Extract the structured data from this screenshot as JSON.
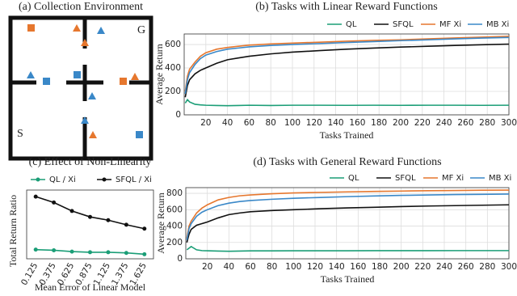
{
  "environment": {
    "title": "(a) Collection Environment",
    "goal_label": "G",
    "start_label": "S"
  },
  "chart_data": [
    {
      "type": "line",
      "title": "(b) Tasks with Linear Reward Functions",
      "x_label": "Tasks Trained",
      "y_label": "Average Return",
      "x": [
        1,
        3,
        5,
        10,
        15,
        20,
        30,
        40,
        50,
        60,
        80,
        100,
        125,
        150,
        175,
        200,
        225,
        250,
        275,
        300
      ],
      "xlim": [
        0,
        300
      ],
      "xticks": [
        20,
        40,
        60,
        80,
        100,
        120,
        140,
        160,
        180,
        200,
        220,
        240,
        260,
        280,
        300
      ],
      "ylim": [
        0,
        690
      ],
      "yticks": [
        0,
        200,
        400,
        600
      ],
      "grid": true,
      "series": [
        {
          "name": "QL",
          "color": "#1b9e77",
          "values": [
            100,
            130,
            110,
            90,
            85,
            82,
            80,
            78,
            80,
            82,
            80,
            82,
            82,
            81,
            82,
            81,
            82,
            82,
            81,
            82
          ]
        },
        {
          "name": "SFQL",
          "color": "#111111",
          "values": [
            150,
            250,
            300,
            350,
            380,
            400,
            440,
            470,
            485,
            500,
            520,
            535,
            548,
            560,
            570,
            578,
            585,
            592,
            598,
            603
          ]
        },
        {
          "name": "MF Xi",
          "color": "#e6772e",
          "values": [
            200,
            330,
            390,
            450,
            500,
            530,
            560,
            575,
            585,
            595,
            605,
            612,
            620,
            628,
            635,
            640,
            648,
            656,
            663,
            670
          ]
        },
        {
          "name": "MB Xi",
          "color": "#3a88c8",
          "values": [
            180,
            300,
            360,
            430,
            480,
            510,
            540,
            560,
            570,
            580,
            592,
            600,
            608,
            617,
            625,
            633,
            640,
            648,
            655,
            660
          ]
        }
      ]
    },
    {
      "type": "line",
      "title": "(c) Effect of Non-Linearity",
      "x_label": "Mean Error of Linear Model",
      "y_label": "Total Return Ratio",
      "categories": [
        "0.125",
        "0.375",
        "0.625",
        "0.875",
        "1.125",
        "1.375",
        "1.625"
      ],
      "ylim": [
        0,
        1.05
      ],
      "series": [
        {
          "name": "QL / Xi",
          "color": "#1b9e77",
          "values": [
            0.14,
            0.13,
            0.11,
            0.1,
            0.1,
            0.09,
            0.07
          ]
        },
        {
          "name": "SFQL / Xi",
          "color": "#111111",
          "values": [
            0.95,
            0.86,
            0.73,
            0.64,
            0.59,
            0.52,
            0.46
          ]
        }
      ]
    },
    {
      "type": "line",
      "title": "(d) Tasks with General Reward Functions",
      "x_label": "Tasks Trained",
      "y_label": "Average Return",
      "x": [
        1,
        3,
        5,
        10,
        15,
        20,
        30,
        40,
        50,
        60,
        80,
        100,
        125,
        150,
        175,
        200,
        225,
        250,
        275,
        300
      ],
      "xlim": [
        0,
        300
      ],
      "xticks": [
        20,
        40,
        60,
        80,
        100,
        120,
        140,
        160,
        180,
        200,
        220,
        240,
        260,
        280,
        300
      ],
      "ylim": [
        0,
        870
      ],
      "yticks": [
        0,
        200,
        400,
        600,
        800
      ],
      "grid": true,
      "series": [
        {
          "name": "QL",
          "color": "#1b9e77",
          "values": [
            110,
            130,
            150,
            110,
            100,
            98,
            95,
            92,
            95,
            97,
            97,
            98,
            98,
            98,
            99,
            99,
            99,
            100,
            100,
            100
          ]
        },
        {
          "name": "SFQL",
          "color": "#111111",
          "values": [
            200,
            300,
            360,
            410,
            430,
            450,
            500,
            540,
            560,
            575,
            590,
            600,
            612,
            622,
            630,
            638,
            645,
            650,
            655,
            660
          ]
        },
        {
          "name": "MF Xi",
          "color": "#e6772e",
          "values": [
            250,
            400,
            460,
            560,
            620,
            660,
            720,
            750,
            770,
            780,
            795,
            805,
            812,
            818,
            824,
            828,
            832,
            835,
            838,
            840
          ]
        },
        {
          "name": "MB Xi",
          "color": "#3a88c8",
          "values": [
            230,
            370,
            430,
            520,
            570,
            600,
            650,
            680,
            700,
            712,
            728,
            740,
            750,
            760,
            768,
            775,
            780,
            785,
            788,
            792
          ]
        }
      ]
    }
  ]
}
